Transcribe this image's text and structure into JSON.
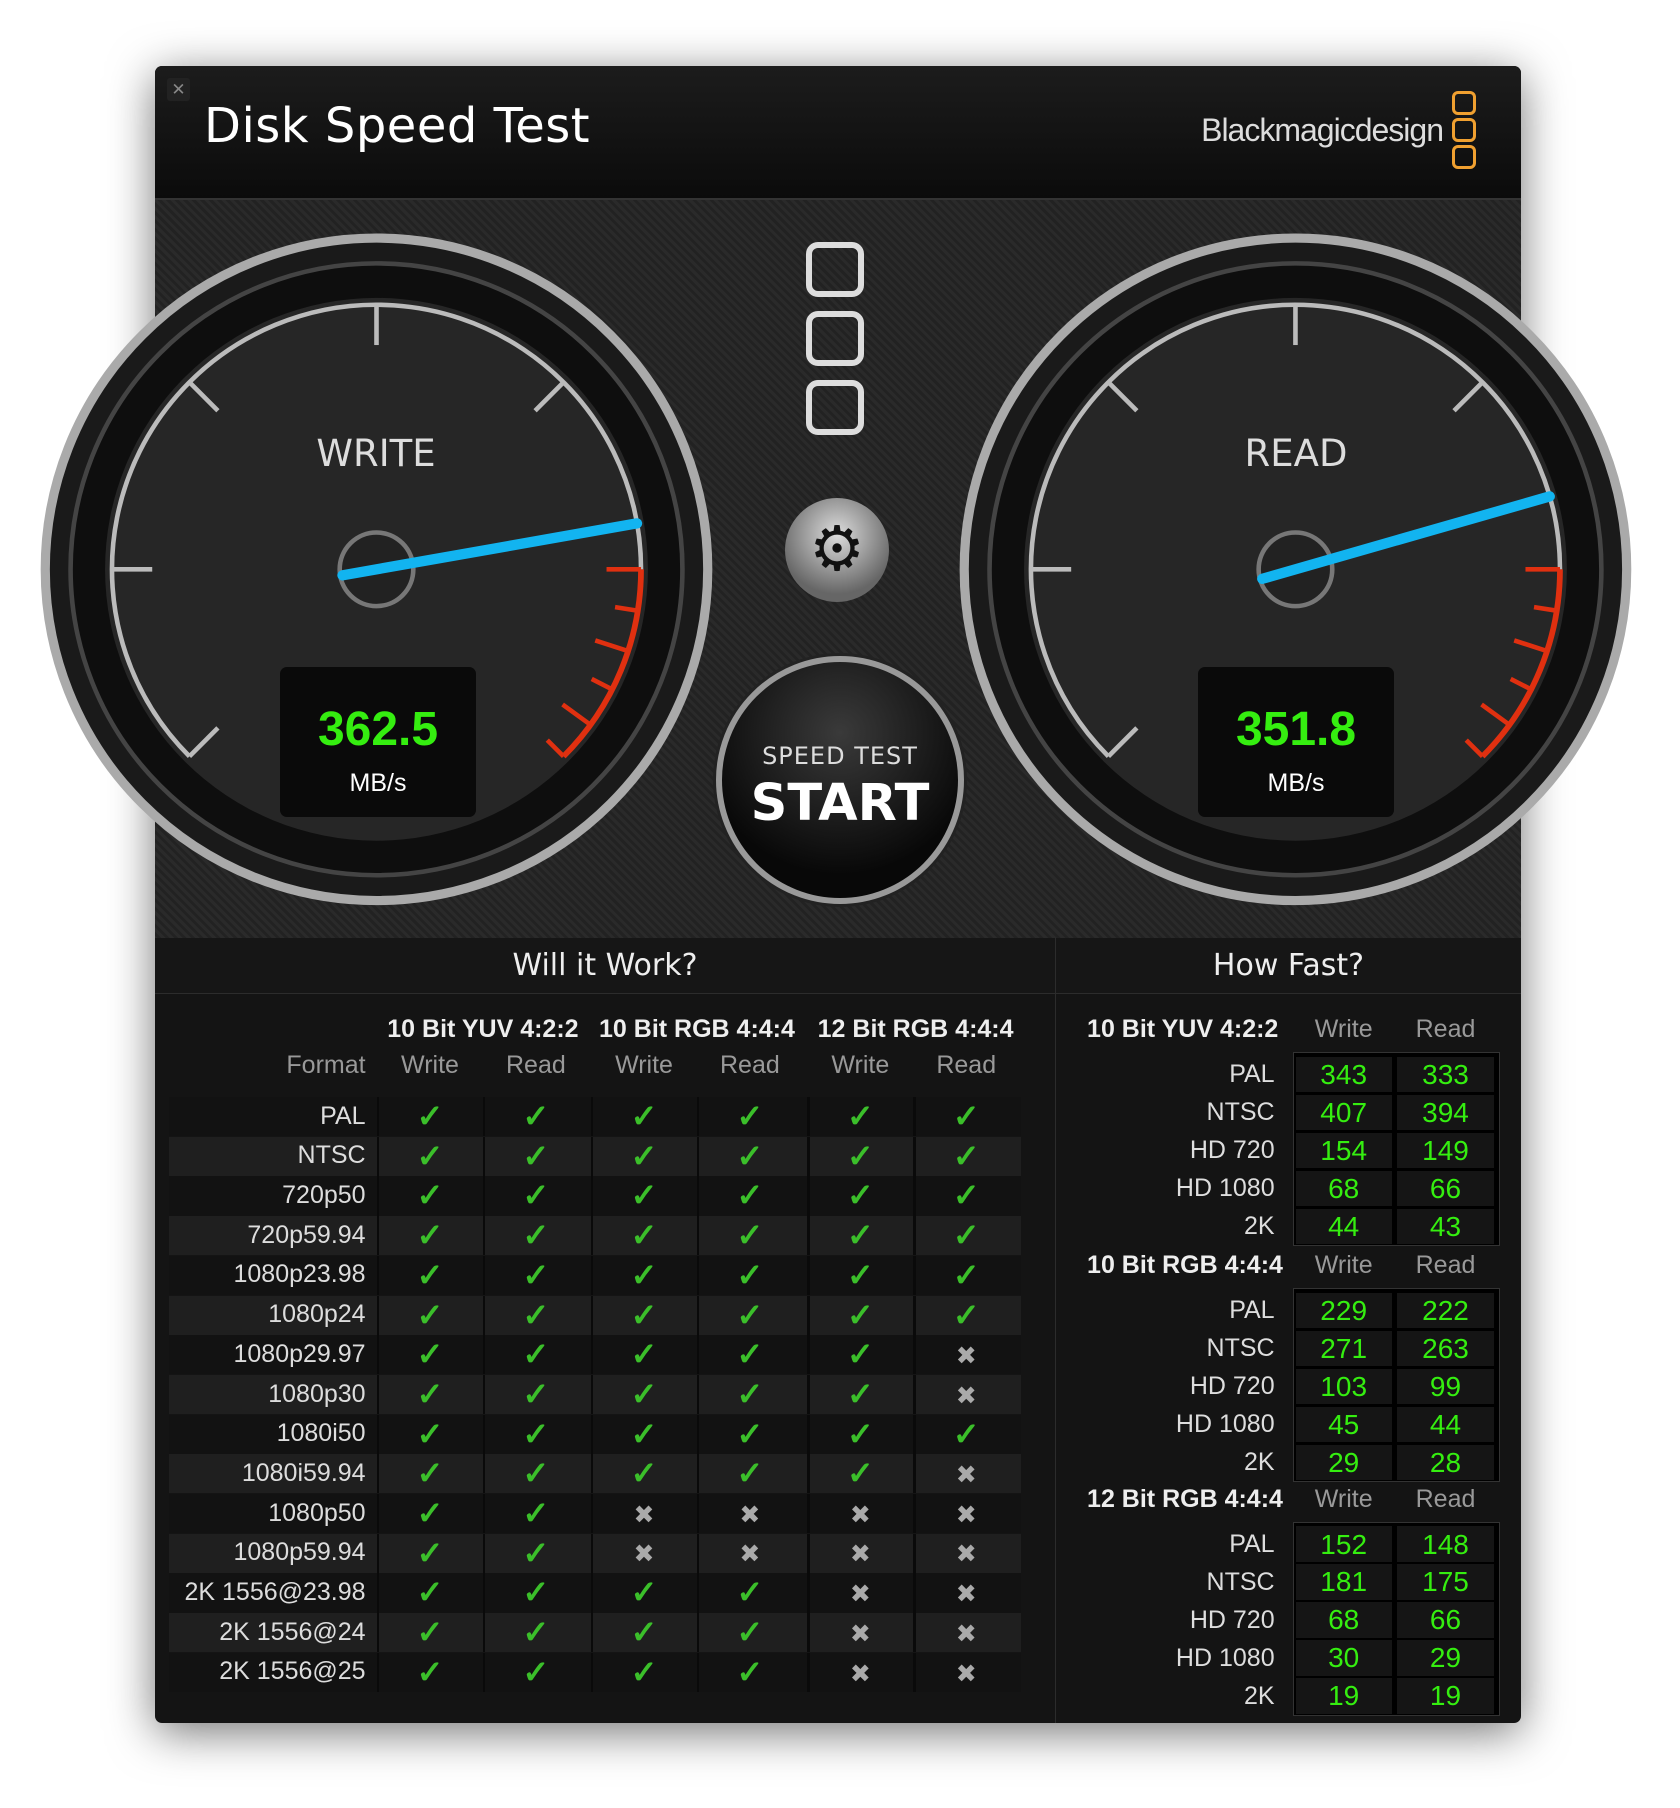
{
  "window": {
    "title": "Disk Speed Test",
    "brand": "Blackmagicdesign",
    "close_icon": "close-icon"
  },
  "gauges": {
    "write": {
      "label": "WRITE",
      "value": "362.5",
      "unit": "MB/s"
    },
    "read": {
      "label": "READ",
      "value": "351.8",
      "unit": "MB/s"
    },
    "needle_color": "#12b4f0",
    "redline_color": "#e03010"
  },
  "controls": {
    "start_top": "SPEED TEST",
    "start_main": "START",
    "settings_icon": "gear-icon"
  },
  "will_it_work": {
    "title": "Will it Work?",
    "format_label": "Format",
    "groups": [
      "10 Bit YUV 4:2:2",
      "10 Bit RGB 4:4:4",
      "12 Bit RGB 4:4:4"
    ],
    "subcols": [
      "Write",
      "Read",
      "Write",
      "Read",
      "Write",
      "Read"
    ],
    "rows": [
      {
        "format": "PAL",
        "results": [
          true,
          true,
          true,
          true,
          true,
          true
        ]
      },
      {
        "format": "NTSC",
        "results": [
          true,
          true,
          true,
          true,
          true,
          true
        ]
      },
      {
        "format": "720p50",
        "results": [
          true,
          true,
          true,
          true,
          true,
          true
        ]
      },
      {
        "format": "720p59.94",
        "results": [
          true,
          true,
          true,
          true,
          true,
          true
        ]
      },
      {
        "format": "1080p23.98",
        "results": [
          true,
          true,
          true,
          true,
          true,
          true
        ]
      },
      {
        "format": "1080p24",
        "results": [
          true,
          true,
          true,
          true,
          true,
          true
        ]
      },
      {
        "format": "1080p29.97",
        "results": [
          true,
          true,
          true,
          true,
          true,
          false
        ]
      },
      {
        "format": "1080p30",
        "results": [
          true,
          true,
          true,
          true,
          true,
          false
        ]
      },
      {
        "format": "1080i50",
        "results": [
          true,
          true,
          true,
          true,
          true,
          true
        ]
      },
      {
        "format": "1080i59.94",
        "results": [
          true,
          true,
          true,
          true,
          true,
          false
        ]
      },
      {
        "format": "1080p50",
        "results": [
          true,
          true,
          false,
          false,
          false,
          false
        ]
      },
      {
        "format": "1080p59.94",
        "results": [
          true,
          true,
          false,
          false,
          false,
          false
        ]
      },
      {
        "format": "2K 1556@23.98",
        "results": [
          true,
          true,
          true,
          true,
          false,
          false
        ]
      },
      {
        "format": "2K 1556@24",
        "results": [
          true,
          true,
          true,
          true,
          false,
          false
        ]
      },
      {
        "format": "2K 1556@25",
        "results": [
          true,
          true,
          true,
          true,
          false,
          false
        ]
      }
    ],
    "check_symbol": "✓",
    "cross_symbol": "✖"
  },
  "how_fast": {
    "title": "How Fast?",
    "groups": [
      {
        "name": "10 Bit YUV 4:2:2",
        "write_label": "Write",
        "read_label": "Read",
        "rows": [
          {
            "format": "PAL",
            "write": "343",
            "read": "333"
          },
          {
            "format": "NTSC",
            "write": "407",
            "read": "394"
          },
          {
            "format": "HD 720",
            "write": "154",
            "read": "149"
          },
          {
            "format": "HD 1080",
            "write": "68",
            "read": "66"
          },
          {
            "format": "2K",
            "write": "44",
            "read": "43"
          }
        ]
      },
      {
        "name": "10 Bit RGB 4:4:4",
        "write_label": "Write",
        "read_label": "Read",
        "rows": [
          {
            "format": "PAL",
            "write": "229",
            "read": "222"
          },
          {
            "format": "NTSC",
            "write": "271",
            "read": "263"
          },
          {
            "format": "HD 720",
            "write": "103",
            "read": "99"
          },
          {
            "format": "HD 1080",
            "write": "45",
            "read": "44"
          },
          {
            "format": "2K",
            "write": "29",
            "read": "28"
          }
        ]
      },
      {
        "name": "12 Bit RGB 4:4:4",
        "write_label": "Write",
        "read_label": "Read",
        "rows": [
          {
            "format": "PAL",
            "write": "152",
            "read": "148"
          },
          {
            "format": "NTSC",
            "write": "181",
            "read": "175"
          },
          {
            "format": "HD 720",
            "write": "68",
            "read": "66"
          },
          {
            "format": "HD 1080",
            "write": "30",
            "read": "29"
          },
          {
            "format": "2K",
            "write": "19",
            "read": "19"
          }
        ]
      }
    ]
  }
}
